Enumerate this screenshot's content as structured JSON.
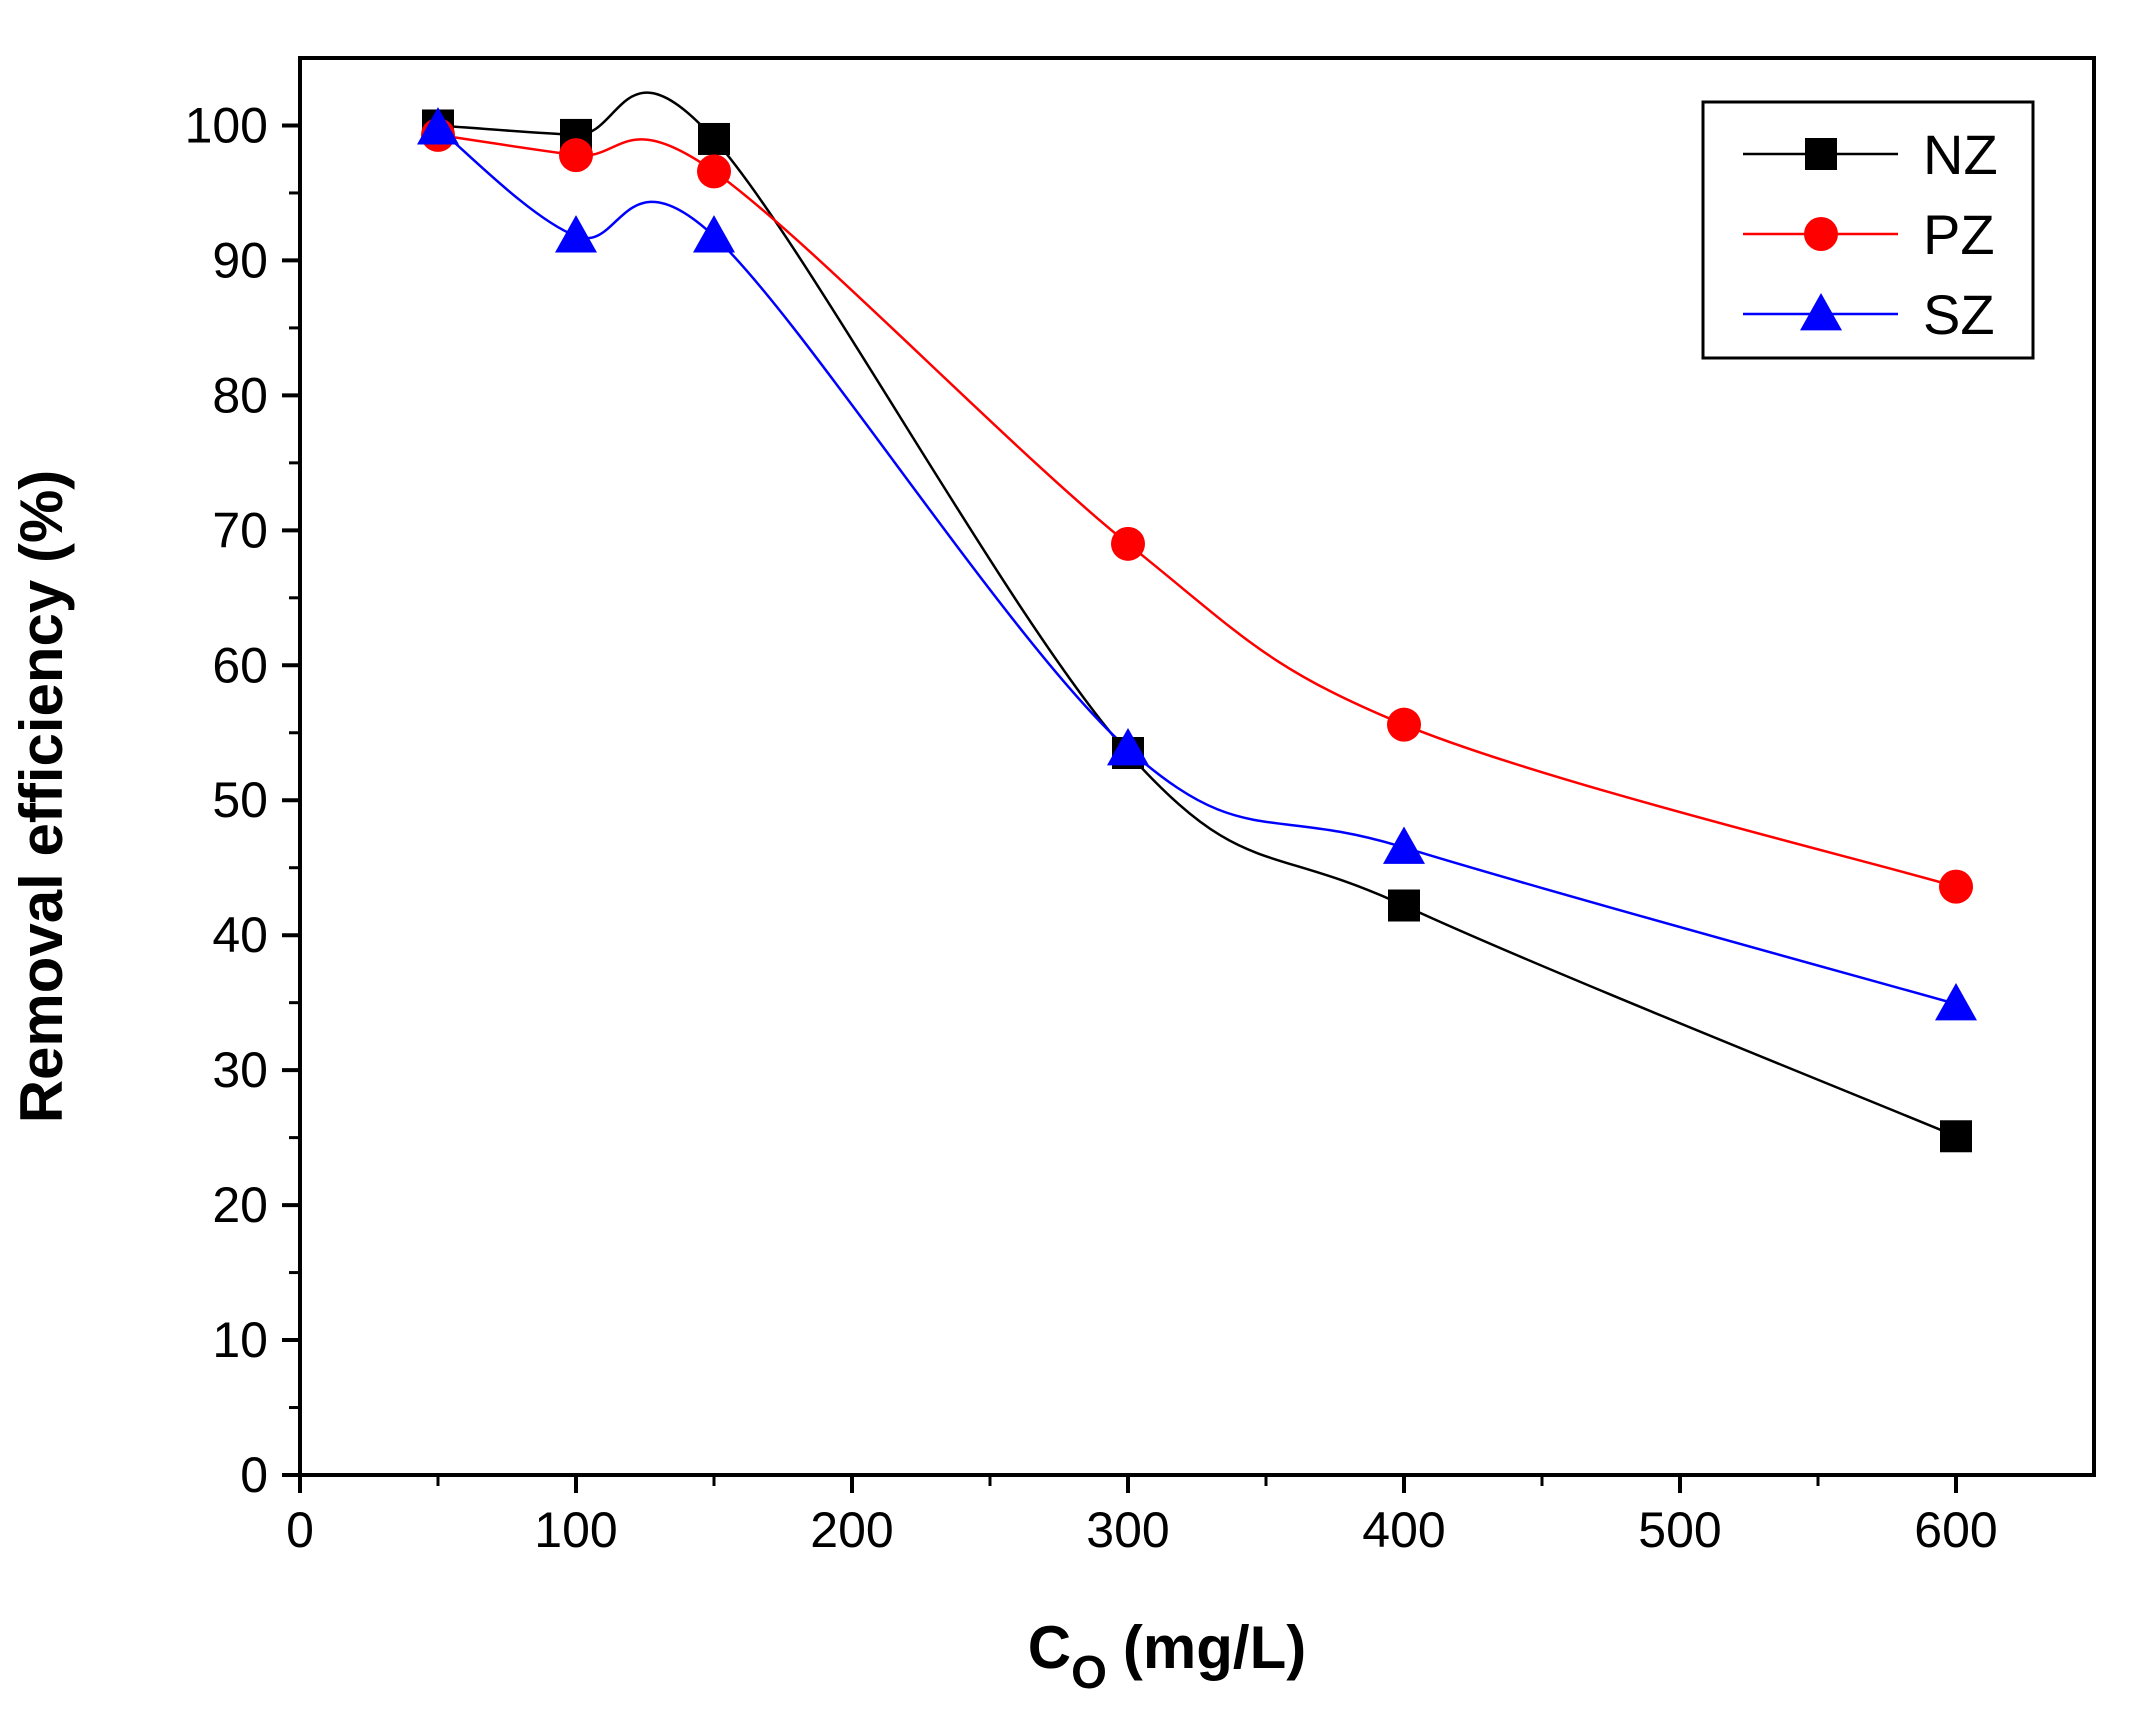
{
  "chart_data": {
    "type": "line",
    "title": "",
    "xlabel": "C",
    "xlabel_subscript": "O",
    "xlabel_unit": "(mg/L)",
    "ylabel": "Removal efficiency (%)",
    "xlim": [
      0,
      650
    ],
    "ylim": [
      0,
      105
    ],
    "xticks": [
      0,
      100,
      200,
      300,
      400,
      500,
      600
    ],
    "xtick_labels": [
      "0",
      "100",
      "200",
      "300",
      "400",
      "500",
      "600"
    ],
    "yticks": [
      0,
      10,
      20,
      30,
      40,
      50,
      60,
      70,
      80,
      90,
      100
    ],
    "ytick_labels": [
      "0",
      "10",
      "20",
      "30",
      "40",
      "50",
      "60",
      "70",
      "80",
      "90",
      "100"
    ],
    "grid": false,
    "legend_position": "top-right",
    "x": [
      50,
      100,
      150,
      300,
      400,
      600
    ],
    "series": [
      {
        "name": "NZ",
        "color": "#000000",
        "marker": "square",
        "values": [
          100,
          99.3,
          99.0,
          53.5,
          42.2,
          25.1
        ]
      },
      {
        "name": "PZ",
        "color": "#ff0000",
        "marker": "circle",
        "values": [
          99.3,
          97.8,
          96.6,
          69.0,
          55.6,
          43.6
        ]
      },
      {
        "name": "SZ",
        "color": "#0000ff",
        "marker": "triangle",
        "values": [
          99.8,
          91.8,
          91.8,
          53.8,
          46.5,
          34.9
        ]
      }
    ]
  }
}
